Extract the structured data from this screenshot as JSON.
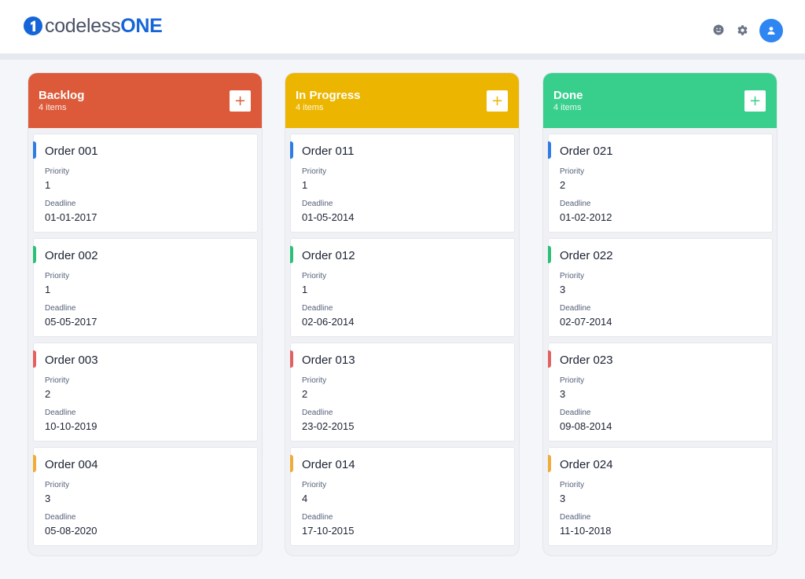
{
  "header": {
    "logo_part1": "codeless",
    "logo_part2": "ONE",
    "icons": [
      "smiley-icon",
      "gear-icon",
      "user-avatar-icon"
    ]
  },
  "columns": [
    {
      "title": "Backlog",
      "count": "4 items",
      "color": "#dc5a3a",
      "add_label": "+",
      "cards": [
        {
          "title": "Order 001",
          "priority_label": "Priority",
          "priority": "1",
          "deadline_label": "Deadline",
          "deadline": "01-01-2017",
          "accent": "#2f7be6"
        },
        {
          "title": "Order 002",
          "priority_label": "Priority",
          "priority": "1",
          "deadline_label": "Deadline",
          "deadline": "05-05-2017",
          "accent": "#2bbf77"
        },
        {
          "title": "Order 003",
          "priority_label": "Priority",
          "priority": "2",
          "deadline_label": "Deadline",
          "deadline": "10-10-2019",
          "accent": "#e46060"
        },
        {
          "title": "Order 004",
          "priority_label": "Priority",
          "priority": "3",
          "deadline_label": "Deadline",
          "deadline": "05-08-2020",
          "accent": "#f0ac3a"
        }
      ]
    },
    {
      "title": "In Progress",
      "count": "4 items",
      "color": "#ecb500",
      "add_label": "+",
      "cards": [
        {
          "title": "Order 011",
          "priority_label": "Priority",
          "priority": "1",
          "deadline_label": "Deadline",
          "deadline": "01-05-2014",
          "accent": "#2f7be6"
        },
        {
          "title": "Order 012",
          "priority_label": "Priority",
          "priority": "1",
          "deadline_label": "Deadline",
          "deadline": "02-06-2014",
          "accent": "#2bbf77"
        },
        {
          "title": "Order 013",
          "priority_label": "Priority",
          "priority": "2",
          "deadline_label": "Deadline",
          "deadline": "23-02-2015",
          "accent": "#e46060"
        },
        {
          "title": "Order 014",
          "priority_label": "Priority",
          "priority": "4",
          "deadline_label": "Deadline",
          "deadline": "17-10-2015",
          "accent": "#f0ac3a"
        }
      ]
    },
    {
      "title": "Done",
      "count": "4 items",
      "color": "#38cf8d",
      "add_label": "+",
      "cards": [
        {
          "title": "Order 021",
          "priority_label": "Priority",
          "priority": "2",
          "deadline_label": "Deadline",
          "deadline": "01-02-2012",
          "accent": "#2f7be6"
        },
        {
          "title": "Order 022",
          "priority_label": "Priority",
          "priority": "3",
          "deadline_label": "Deadline",
          "deadline": "02-07-2014",
          "accent": "#2bbf77"
        },
        {
          "title": "Order 023",
          "priority_label": "Priority",
          "priority": "3",
          "deadline_label": "Deadline",
          "deadline": "09-08-2014",
          "accent": "#e46060"
        },
        {
          "title": "Order 024",
          "priority_label": "Priority",
          "priority": "3",
          "deadline_label": "Deadline",
          "deadline": "11-10-2018",
          "accent": "#f0ac3a"
        }
      ]
    }
  ]
}
